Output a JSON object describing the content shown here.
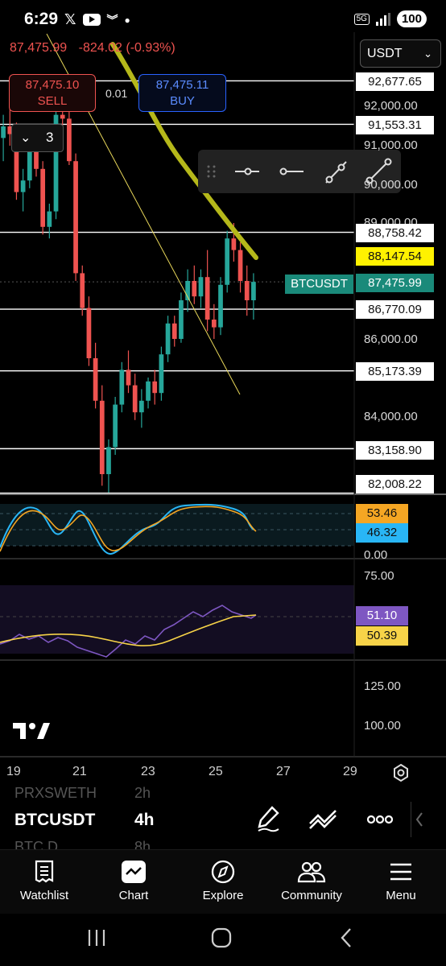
{
  "status_bar": {
    "time": "6:29",
    "network": "5G",
    "battery": "100"
  },
  "quote": {
    "price": "87,475.99",
    "change": "-824.02",
    "change_pct": "(-0.93%)"
  },
  "sell": {
    "price": "87,475.10",
    "label": "SELL"
  },
  "buy": {
    "price": "87,475.11",
    "label": "BUY"
  },
  "spread": "0.01",
  "lots": "3",
  "currency_select": "USDT",
  "symbol_tag": "BTCUSDT",
  "price_labels": {
    "p1": "92,677.65",
    "p2": "91,553.31",
    "p3": "88,758.42",
    "p4": "88,147.54",
    "p5": "87,475.99",
    "p6": "86,770.09",
    "p7": "85,173.39",
    "p8": "83,158.90",
    "p9": "82,008.22"
  },
  "axis_labels": {
    "a1": "92,000.00",
    "a2": "91,000.00",
    "a3": "90,000.00",
    "a4": "89,000.00",
    "a5": "86,000.00",
    "a6": "84,000.00"
  },
  "osc1": {
    "v1": "53.46",
    "v2": "46.32",
    "zero": "0.00"
  },
  "osc2": {
    "top": "75.00",
    "v1": "51.10",
    "v2": "50.39"
  },
  "osc3": {
    "a": "125.00",
    "b": "100.00"
  },
  "x_ticks": [
    "19",
    "21",
    "23",
    "25",
    "27",
    "29"
  ],
  "watchlist": {
    "prev": "PRXSWETH",
    "prev_tf": "2h",
    "symbol": "BTCUSDT",
    "timeframe": "4h",
    "next": "BTC.D",
    "next_tf": "8h"
  },
  "nav": {
    "watchlist": "Watchlist",
    "chart": "Chart",
    "explore": "Explore",
    "community": "Community",
    "menu": "Menu"
  },
  "colors": {
    "up": "#26a69a",
    "down": "#ef5350",
    "trend": "#b5b81a",
    "orange": "#f5a623",
    "cyan": "#29b6f6",
    "purple": "#7e57c2",
    "yellow": "#f7d348"
  },
  "chart_data": {
    "type": "candlestick",
    "symbol": "BTCUSDT",
    "timeframe": "4h",
    "x_ticks": [
      "19",
      "21",
      "23",
      "25",
      "27",
      "29"
    ],
    "candles": [
      [
        91200,
        91800,
        90600,
        91500
      ],
      [
        91500,
        92100,
        91000,
        91300
      ],
      [
        91300,
        91600,
        89600,
        89800
      ],
      [
        89800,
        90400,
        89300,
        90100
      ],
      [
        90100,
        91200,
        89900,
        90900
      ],
      [
        90900,
        91500,
        90200,
        90400
      ],
      [
        90400,
        90600,
        88700,
        88900
      ],
      [
        88900,
        89500,
        88600,
        89300
      ],
      [
        89300,
        92000,
        89100,
        91800
      ],
      [
        91800,
        92300,
        91300,
        91700
      ],
      [
        91700,
        92000,
        90500,
        90600
      ],
      [
        90600,
        90800,
        87500,
        87700
      ],
      [
        87700,
        87900,
        86600,
        86800
      ],
      [
        86800,
        87100,
        85300,
        85500
      ],
      [
        85500,
        85900,
        84200,
        84400
      ],
      [
        84400,
        84800,
        82200,
        82500
      ],
      [
        82500,
        83400,
        82000,
        83200
      ],
      [
        83200,
        84500,
        83000,
        84300
      ],
      [
        84300,
        85400,
        84100,
        85200
      ],
      [
        85200,
        85700,
        84600,
        84800
      ],
      [
        84800,
        85100,
        83900,
        84100
      ],
      [
        84100,
        84700,
        83700,
        84400
      ],
      [
        84400,
        85000,
        84200,
        84900
      ],
      [
        84900,
        85200,
        84300,
        84600
      ],
      [
        84600,
        85800,
        84400,
        85600
      ],
      [
        85600,
        86600,
        85400,
        86400
      ],
      [
        86400,
        86600,
        85800,
        86000
      ],
      [
        86000,
        87200,
        85900,
        87000
      ],
      [
        87000,
        87800,
        86700,
        87500
      ],
      [
        87500,
        87900,
        86900,
        87100
      ],
      [
        87100,
        87800,
        86800,
        87600
      ],
      [
        87600,
        88300,
        86200,
        86500
      ],
      [
        86500,
        86900,
        86000,
        86300
      ],
      [
        86300,
        87600,
        86100,
        87400
      ],
      [
        87400,
        88800,
        87200,
        88600
      ],
      [
        88600,
        89000,
        88000,
        88300
      ],
      [
        88300,
        88500,
        87200,
        87500
      ],
      [
        87500,
        87900,
        86600,
        87000
      ],
      [
        87000,
        87700,
        86500,
        87475.99
      ]
    ],
    "horizontal_levels": [
      92677.65,
      91553.31,
      88758.42,
      86770.09,
      85173.39,
      83158.9,
      82008.22
    ],
    "y_axis_ticks": [
      92000,
      91000,
      90000,
      89000,
      86000,
      84000
    ],
    "last_price": 87475.99,
    "trend_line_value": 88147.54,
    "oscillator_1": {
      "values": [
        53.46,
        46.32
      ],
      "zero": 0.0
    },
    "oscillator_2": {
      "values": [
        51.1,
        50.39
      ],
      "level": 75.0
    },
    "oscillator_3": {
      "ticks": [
        125.0,
        100.0
      ]
    }
  }
}
